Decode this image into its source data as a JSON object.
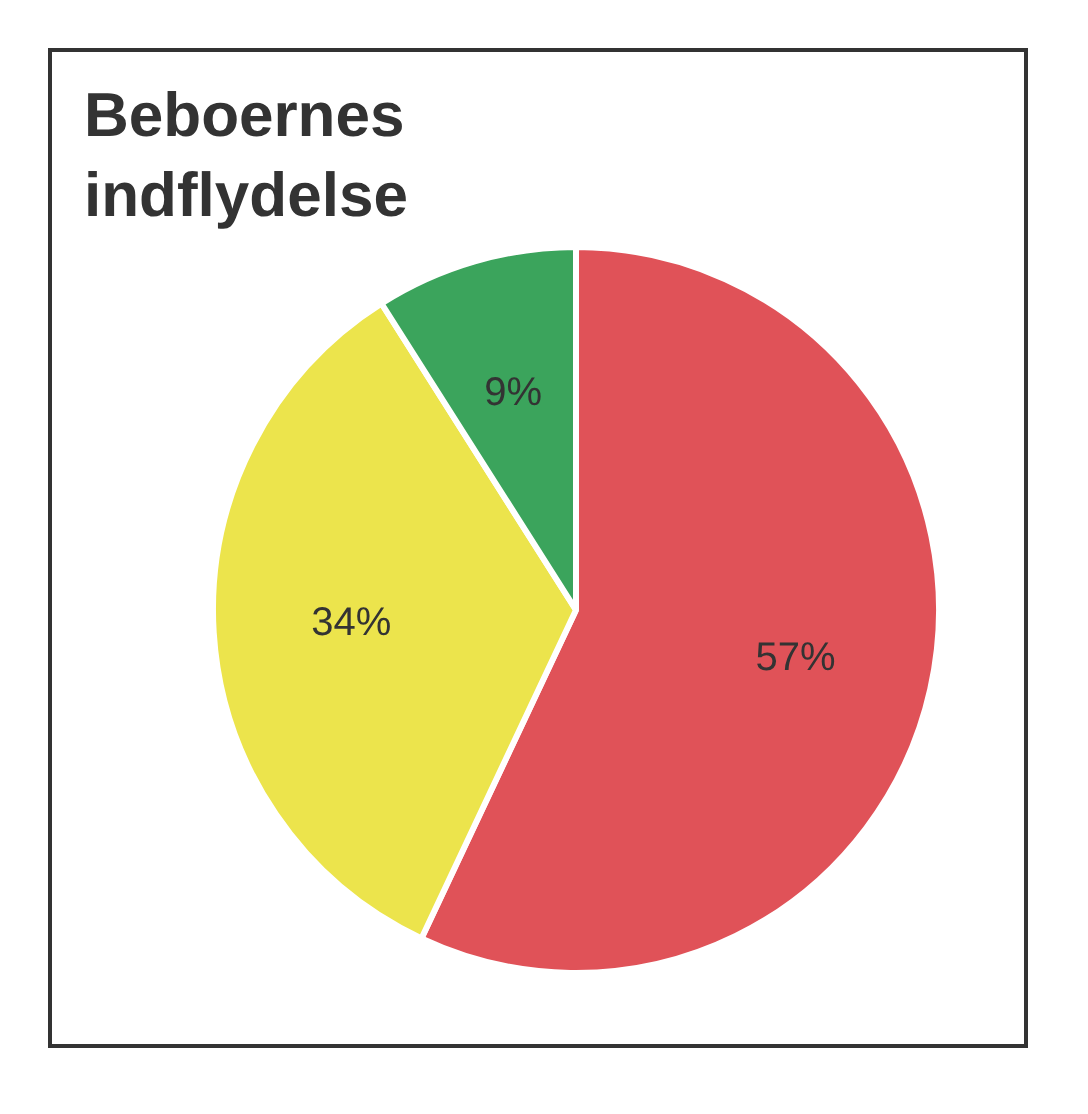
{
  "chart_data": {
    "type": "pie",
    "title": "Beboernes indflydelse",
    "categories": [
      null,
      null,
      null
    ],
    "values": [
      57,
      34,
      9
    ],
    "colors": [
      "#e05258",
      "#ece44c",
      "#3ba45c"
    ],
    "value_labels": [
      "57%",
      "34%",
      "9%"
    ],
    "legend": false
  }
}
